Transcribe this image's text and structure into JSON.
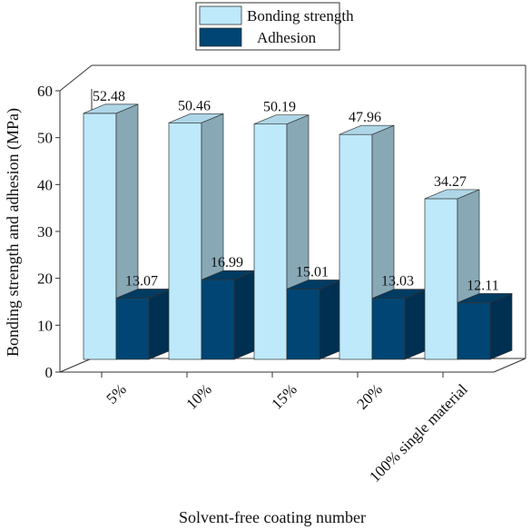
{
  "chart_data": {
    "type": "bar",
    "title": "",
    "xlabel": "Solvent-free coating number",
    "ylabel": "Bonding strength and adhesion (MPa)",
    "ylim": [
      0,
      60
    ],
    "yticks": [
      "0",
      "10",
      "20",
      "30",
      "40",
      "50",
      "60"
    ],
    "categories": [
      "5%",
      "10%",
      "15%",
      "20%",
      "100% single material"
    ],
    "series": [
      {
        "name": "Bonding strength",
        "color": "#bde9fb",
        "values": [
          52.48,
          50.46,
          50.19,
          47.96,
          34.27
        ],
        "labels": [
          "52.48",
          "50.46",
          "50.19",
          "47.96",
          "34.27"
        ]
      },
      {
        "name": "Adhesion",
        "color": "#004573",
        "values": [
          13.07,
          16.99,
          15.01,
          13.03,
          12.11
        ],
        "labels": [
          "13.07",
          "16.99",
          "15.01",
          "13.03",
          "12.11"
        ]
      }
    ],
    "legend_position": "top",
    "grid": false,
    "style": "3d-bar"
  }
}
